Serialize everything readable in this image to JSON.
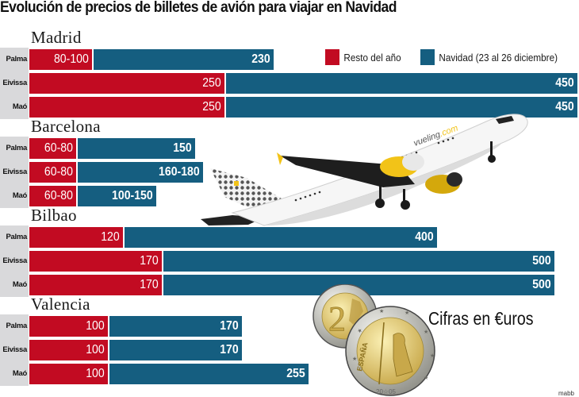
{
  "title": "Evolución de precios de billetes de avión para viajar en Navidad",
  "legend": {
    "items": [
      {
        "label": "Resto del año",
        "color": "#c20b22"
      },
      {
        "label": "Navidad (23 al 26 diciembre)",
        "color": "#155e80"
      }
    ]
  },
  "note": "Cifras en €uros",
  "credit": "mabb",
  "plane_logo": "vueling.com",
  "coin_text": "ESPAÑA 20 05",
  "chart_data": {
    "type": "bar",
    "orientation": "horizontal",
    "stacked": true,
    "title": "Evolución de precios de billetes de avión para viajar en Navidad",
    "unit": "€",
    "series_names": [
      "Resto del año",
      "Navidad (23 al 26 diciembre)"
    ],
    "groups": [
      {
        "origin": "Madrid",
        "rows": [
          {
            "destination": "Palma",
            "resto": {
              "label": "80-100",
              "value": 80
            },
            "navidad": {
              "label": "230",
              "value": 230
            }
          },
          {
            "destination": "Eivissa",
            "resto": {
              "label": "250",
              "value": 250
            },
            "navidad": {
              "label": "450",
              "value": 450
            }
          },
          {
            "destination": "Maó",
            "resto": {
              "label": "250",
              "value": 250
            },
            "navidad": {
              "label": "450",
              "value": 450
            }
          }
        ]
      },
      {
        "origin": "Barcelona",
        "rows": [
          {
            "destination": "Palma",
            "resto": {
              "label": "60-80",
              "value": 60
            },
            "navidad": {
              "label": "150",
              "value": 150
            }
          },
          {
            "destination": "Eivissa",
            "resto": {
              "label": "60-80",
              "value": 60
            },
            "navidad": {
              "label": "160-180",
              "value": 160
            }
          },
          {
            "destination": "Maó",
            "resto": {
              "label": "60-80",
              "value": 60
            },
            "navidad": {
              "label": "100-150",
              "value": 100
            }
          }
        ]
      },
      {
        "origin": "Bilbao",
        "rows": [
          {
            "destination": "Palma",
            "resto": {
              "label": "120",
              "value": 120
            },
            "navidad": {
              "label": "400",
              "value": 400
            }
          },
          {
            "destination": "Eivissa",
            "resto": {
              "label": "170",
              "value": 170
            },
            "navidad": {
              "label": "500",
              "value": 500
            }
          },
          {
            "destination": "Maó",
            "resto": {
              "label": "170",
              "value": 170
            },
            "navidad": {
              "label": "500",
              "value": 500
            }
          }
        ]
      },
      {
        "origin": "Valencia",
        "rows": [
          {
            "destination": "Palma",
            "resto": {
              "label": "100",
              "value": 100
            },
            "navidad": {
              "label": "170",
              "value": 170
            }
          },
          {
            "destination": "Eivissa",
            "resto": {
              "label": "100",
              "value": 100
            },
            "navidad": {
              "label": "170",
              "value": 170
            }
          },
          {
            "destination": "Maó",
            "resto": {
              "label": "100",
              "value": 100
            },
            "navidad": {
              "label": "255",
              "value": 255
            }
          }
        ]
      }
    ]
  }
}
